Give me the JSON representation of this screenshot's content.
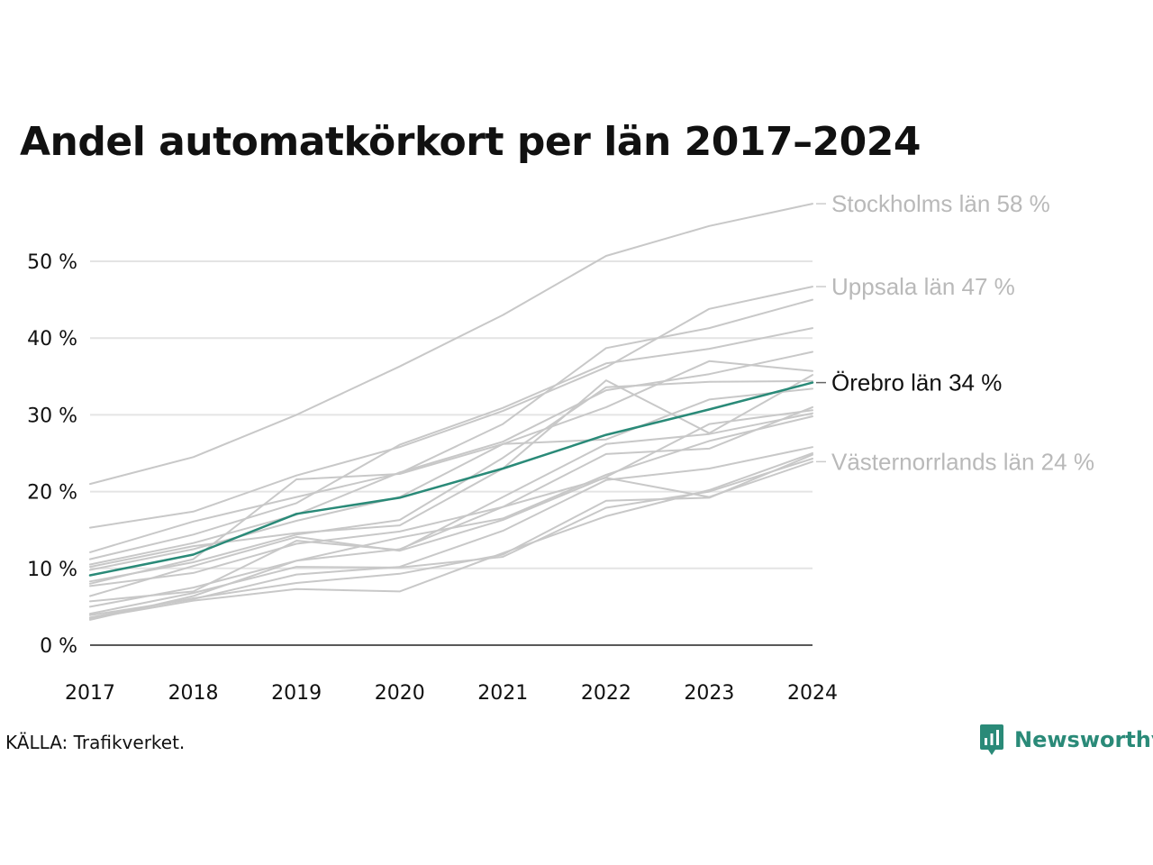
{
  "chart_data": {
    "type": "line",
    "title": "Andel automatkörkort per län 2017–2024",
    "x": [
      "2017",
      "2018",
      "2019",
      "2020",
      "2021",
      "2022",
      "2023",
      "2024"
    ],
    "y_ticks": [
      "0 %",
      "10 %",
      "20 %",
      "30 %",
      "40 %",
      "50 %"
    ],
    "ylim": [
      0,
      58
    ],
    "grid": true,
    "highlight_color": "#2a8a78",
    "background_color": "#c8c8c8",
    "labels": [
      {
        "series": "Stockholms län",
        "text": "Stockholms län 58 %",
        "value": 57.5,
        "highlight": false
      },
      {
        "series": "Uppsala län",
        "text": "Uppsala län 47 %",
        "value": 46.7,
        "highlight": false
      },
      {
        "series": "Örebro län",
        "text": "Örebro län 34 %",
        "value": 34.2,
        "highlight": true
      },
      {
        "series": "Västernorrlands län",
        "text": "Västernorrlands län 24 %",
        "value": 23.9,
        "highlight": false
      }
    ],
    "series": [
      {
        "name": "Stockholms län",
        "values": [
          21.0,
          24.5,
          30.0,
          36.3,
          43.0,
          50.7,
          54.6,
          57.5
        ],
        "highlight": false
      },
      {
        "name": "Uppsala län",
        "values": [
          15.3,
          17.4,
          22.1,
          25.8,
          30.5,
          36.2,
          43.8,
          46.7
        ],
        "highlight": false
      },
      {
        "name": "",
        "values": [
          12.1,
          16.1,
          19.3,
          22.4,
          28.8,
          38.7,
          41.3,
          45.0
        ],
        "highlight": false
      },
      {
        "name": "",
        "values": [
          11.2,
          14.4,
          18.5,
          26.1,
          30.9,
          36.7,
          38.6,
          41.3
        ],
        "highlight": false
      },
      {
        "name": "",
        "values": [
          10.5,
          13.3,
          17.0,
          22.5,
          26.5,
          33.2,
          35.3,
          38.2
        ],
        "highlight": false
      },
      {
        "name": "",
        "values": [
          9.8,
          12.5,
          16.2,
          19.3,
          26.2,
          31.0,
          37.0,
          35.7
        ],
        "highlight": false
      },
      {
        "name": "",
        "values": [
          10.2,
          12.9,
          14.6,
          15.6,
          23.0,
          34.5,
          27.6,
          35.2
        ],
        "highlight": false
      },
      {
        "name": "Örebro län",
        "values": [
          9.1,
          11.8,
          17.1,
          19.2,
          23.0,
          27.4,
          30.7,
          34.2
        ],
        "highlight": true
      },
      {
        "name": "",
        "values": [
          8.3,
          10.8,
          14.4,
          16.3,
          24.4,
          33.6,
          34.3,
          34.4
        ],
        "highlight": false
      },
      {
        "name": "",
        "values": [
          8.0,
          11.2,
          21.6,
          22.3,
          26.2,
          26.8,
          32.0,
          33.4
        ],
        "highlight": false
      },
      {
        "name": "",
        "values": [
          7.7,
          9.4,
          13.2,
          14.8,
          18.0,
          24.9,
          25.6,
          31.0
        ],
        "highlight": false
      },
      {
        "name": "",
        "values": [
          6.4,
          10.3,
          14.1,
          12.3,
          16.3,
          21.9,
          28.8,
          30.6
        ],
        "highlight": false
      },
      {
        "name": "",
        "values": [
          5.7,
          7.0,
          13.6,
          12.4,
          19.3,
          26.2,
          27.5,
          30.2
        ],
        "highlight": false
      },
      {
        "name": "",
        "values": [
          5.0,
          7.5,
          11.0,
          14.0,
          16.5,
          22.2,
          26.6,
          29.8
        ],
        "highlight": false
      },
      {
        "name": "",
        "values": [
          3.9,
          6.0,
          9.2,
          10.2,
          14.9,
          21.5,
          23.0,
          25.8
        ],
        "highlight": false
      },
      {
        "name": "",
        "values": [
          3.6,
          6.1,
          8.1,
          9.3,
          11.8,
          18.8,
          19.2,
          24.8
        ],
        "highlight": false
      },
      {
        "name": "",
        "values": [
          3.5,
          5.8,
          7.3,
          7.0,
          12.0,
          16.8,
          20.2,
          25.0
        ],
        "highlight": false
      },
      {
        "name": "",
        "values": [
          4.1,
          6.8,
          10.2,
          10.1,
          11.5,
          17.9,
          20.0,
          24.3
        ],
        "highlight": false
      },
      {
        "name": "Västernorrlands län",
        "values": [
          3.3,
          6.4,
          11.0,
          12.5,
          18.0,
          21.8,
          19.3,
          23.9
        ],
        "highlight": false
      }
    ]
  },
  "source_text": "KÄLLA: Trafikverket.",
  "logo_text": "Newsworthy",
  "logo_color": "#2a8a78"
}
